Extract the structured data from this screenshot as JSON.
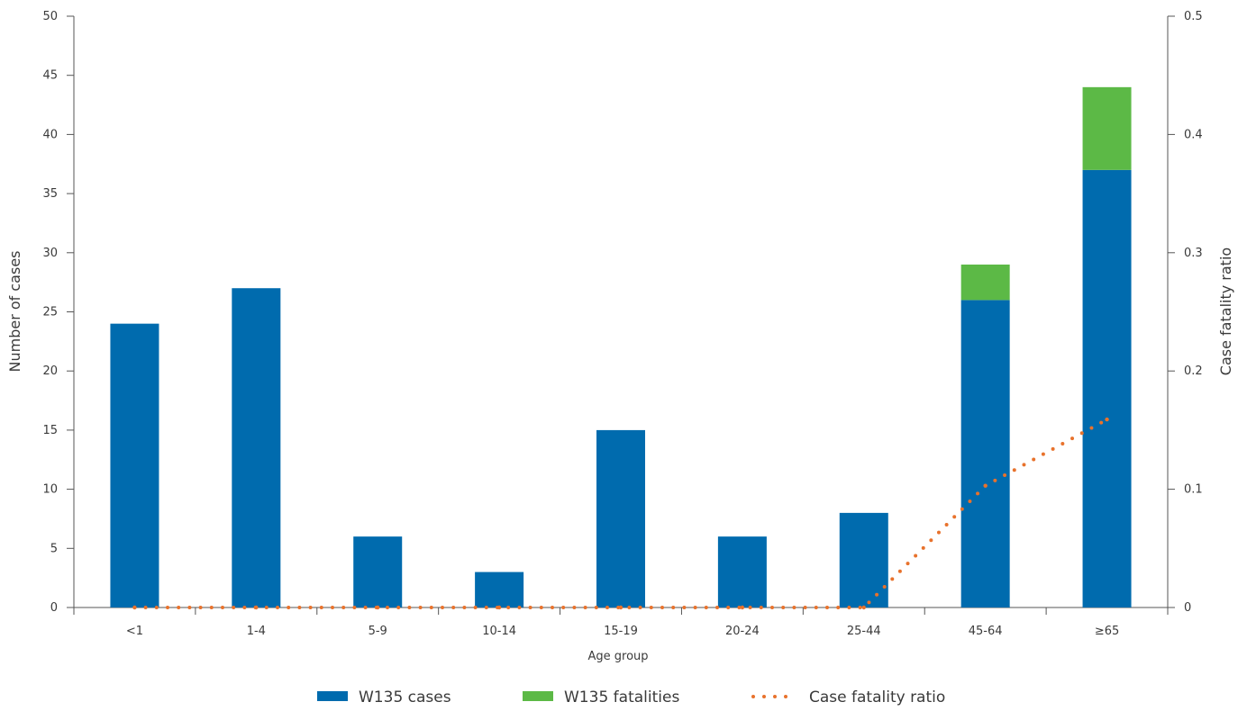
{
  "chart_data": {
    "type": "bar",
    "stacked": true,
    "categories": [
      "<1",
      "1-4",
      "5-9",
      "10-14",
      "15-19",
      "20-24",
      "25-44",
      "45-64",
      "≥65"
    ],
    "series": [
      {
        "name": "W135 cases",
        "values": [
          24,
          27,
          6,
          3,
          15,
          6,
          8,
          26,
          37
        ],
        "color": "#006BAE",
        "kind": "bar"
      },
      {
        "name": "W135 fatalities",
        "values": [
          0,
          0,
          0,
          0,
          0,
          0,
          0,
          3,
          7
        ],
        "color": "#5CB946",
        "kind": "bar"
      },
      {
        "name": "Case fatality ratio",
        "values": [
          0,
          0,
          0,
          0,
          0,
          0,
          0,
          0.103,
          0.159
        ],
        "color": "#E8722C",
        "kind": "line",
        "axis": "right",
        "line_style": "dotted"
      }
    ],
    "xlabel": "Age group",
    "ylabel": "Number of cases",
    "y2label": "Case fatality ratio",
    "ylim": [
      0,
      50
    ],
    "y2lim": [
      0,
      0.5
    ],
    "yticks": [
      "0",
      "5",
      "10",
      "15",
      "20",
      "25",
      "30",
      "35",
      "40",
      "45",
      "50"
    ],
    "y2ticks": [
      "0",
      "0.1",
      "0.2",
      "0.3",
      "0.4",
      "0.5"
    ],
    "grid": false,
    "legend_position": "bottom"
  }
}
